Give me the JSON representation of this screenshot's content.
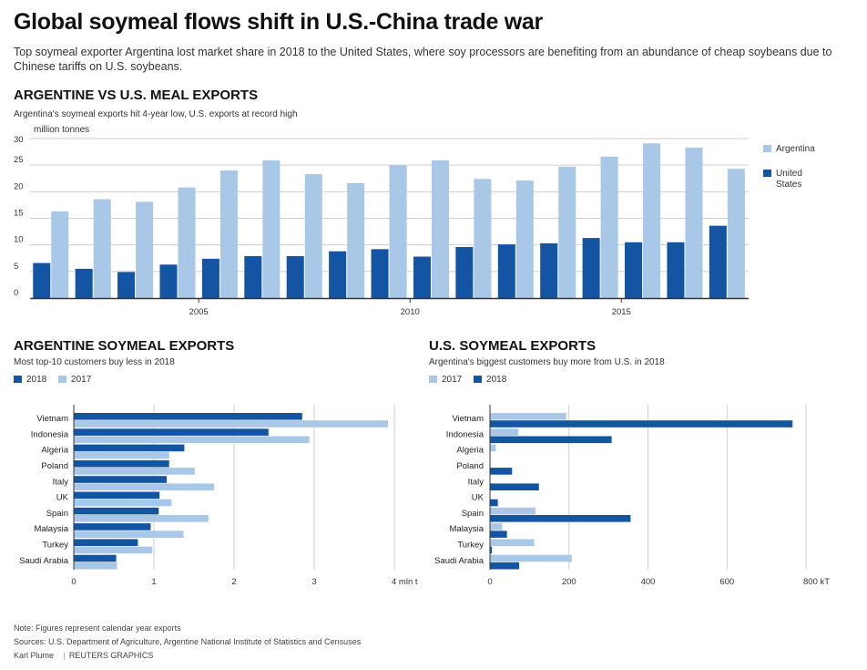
{
  "header": {
    "title": "Global soymeal flows shift in U.S.-China trade war",
    "subtitle": "Top soymeal exporter Argentina lost market share in 2018 to the United States, where soy processors are benefiting from an abundance of cheap soybeans due to Chinese tariffs on U.S. soybeans."
  },
  "colors": {
    "dark": "#1455a3",
    "light": "#a9c7e7",
    "grid": "#cfcfcf",
    "axis": "#333333"
  },
  "section1": {
    "title": "ARGENTINE VS U.S. MEAL EXPORTS",
    "subtitle": "Argentina's soymeal exports hit 4-year low, U.S. exports at record high",
    "unit": "million tonnes",
    "legend_argentina": "Argentina",
    "legend_us": "United States"
  },
  "section2": {
    "title": "ARGENTINE SOYMEAL EXPORTS",
    "subtitle": "Most top-10 customers buy less in 2018",
    "legend_a": "2018",
    "legend_b": "2017",
    "axis_unit": "mln t"
  },
  "section3": {
    "title": "U.S. SOYMEAL EXPORTS",
    "subtitle": "Argentina's biggest customers buy more from U.S. in 2018",
    "legend_a": "2017",
    "legend_b": "2018",
    "axis_unit": "kT"
  },
  "footer": {
    "note": "Note: Figures represent calendar year exports",
    "sources": "Sources: U.S. Department of Agriculture, Argentine National Institute of Statistics and Censuses",
    "author": "Karl Plume",
    "credit": "REUTERS GRAPHICS"
  },
  "chart_data": [
    {
      "type": "bar",
      "title": "ARGENTINE VS U.S. MEAL EXPORTS",
      "ylabel": "million tonnes",
      "ylim": [
        0,
        30
      ],
      "yticks": [
        0,
        5,
        10,
        15,
        20,
        25,
        30
      ],
      "x": [
        2002,
        2003,
        2004,
        2005,
        2006,
        2007,
        2008,
        2009,
        2010,
        2011,
        2012,
        2013,
        2014,
        2015,
        2016,
        2017,
        2018
      ],
      "xticks": [
        2005,
        2010,
        2015
      ],
      "grid": true,
      "legend": "right",
      "series": [
        {
          "name": "Argentina",
          "color": "#a9c7e7",
          "values": [
            16.3,
            18.6,
            18.1,
            20.8,
            24.0,
            25.9,
            23.3,
            21.6,
            25.0,
            25.9,
            22.4,
            22.1,
            24.7,
            26.6,
            29.1,
            28.3,
            24.3
          ]
        },
        {
          "name": "United States",
          "color": "#1455a3",
          "values": [
            6.6,
            5.5,
            4.9,
            6.3,
            7.4,
            7.9,
            7.9,
            8.8,
            9.2,
            7.8,
            9.6,
            10.1,
            10.3,
            11.3,
            10.5,
            10.5,
            13.6
          ]
        }
      ]
    },
    {
      "type": "bar",
      "orientation": "horizontal",
      "title": "ARGENTINE SOYMEAL EXPORTS",
      "xlabel": "mln t",
      "xlim": [
        0,
        4
      ],
      "xticks": [
        0,
        1,
        2,
        3,
        4
      ],
      "grid": true,
      "categories": [
        "Vietnam",
        "Indonesia",
        "Algeria",
        "Poland",
        "Italy",
        "UK",
        "Spain",
        "Malaysia",
        "Turkey",
        "Saudi Arabia"
      ],
      "series": [
        {
          "name": "2018",
          "color": "#1455a3",
          "values": [
            2.85,
            2.43,
            1.38,
            1.19,
            1.16,
            1.07,
            1.06,
            0.96,
            0.8,
            0.53
          ]
        },
        {
          "name": "2017",
          "color": "#a9c7e7",
          "values": [
            3.92,
            2.94,
            1.19,
            1.51,
            1.75,
            1.22,
            1.68,
            1.37,
            0.98,
            0.54
          ]
        }
      ]
    },
    {
      "type": "bar",
      "orientation": "horizontal",
      "title": "U.S. SOYMEAL EXPORTS",
      "xlabel": "kT",
      "xlim": [
        0,
        800
      ],
      "xticks": [
        0,
        200,
        400,
        600,
        800
      ],
      "grid": true,
      "categories": [
        "Vietnam",
        "Indonesia",
        "Algeria",
        "Poland",
        "Italy",
        "UK",
        "Spain",
        "Malaysia",
        "Turkey",
        "Saudi Arabia"
      ],
      "series": [
        {
          "name": "2017",
          "color": "#a9c7e7",
          "values": [
            193,
            72,
            15,
            0,
            0,
            0,
            115,
            31,
            112,
            207
          ]
        },
        {
          "name": "2018",
          "color": "#1455a3",
          "values": [
            766,
            308,
            0,
            56,
            124,
            20,
            356,
            43,
            5,
            74
          ]
        }
      ]
    }
  ]
}
